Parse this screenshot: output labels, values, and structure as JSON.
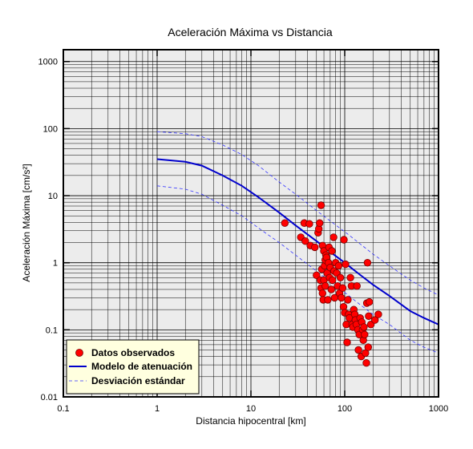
{
  "chart_data": {
    "type": "scatter",
    "title": "Aceleración Máxima vs Distancia",
    "xlabel": "Distancia hipocentral [km]",
    "ylabel": "Aceleración Máxima [cm/s²]",
    "xscale": "log",
    "yscale": "log",
    "xlim": [
      0.1,
      1000
    ],
    "ylim": [
      0.01,
      1500
    ],
    "x_ticks": [
      0.1,
      1,
      10,
      100,
      1000
    ],
    "x_tick_labels": [
      "0.1",
      "1",
      "10",
      "100",
      "1000"
    ],
    "y_ticks": [
      0.01,
      0.1,
      1,
      10,
      100,
      1000
    ],
    "y_tick_labels": [
      "0.01",
      "0.1",
      "1",
      "10",
      "100",
      "1000"
    ],
    "grid": true,
    "legend_position": "bottom-left",
    "legend": [
      {
        "label": "Datos observados",
        "marker": "circle",
        "color": "#ff0000"
      },
      {
        "label": "Modelo de atenuación",
        "line": "solid",
        "color": "#0000cc"
      },
      {
        "label": "Desviación estándar",
        "line": "dashed",
        "color": "#3333ff"
      }
    ],
    "series": [
      {
        "name": "Datos observados",
        "kind": "points",
        "color": "#ff0000",
        "points": [
          [
            23,
            3.9
          ],
          [
            34,
            2.4
          ],
          [
            37,
            3.9
          ],
          [
            38,
            2.1
          ],
          [
            42,
            3.8
          ],
          [
            43,
            1.8
          ],
          [
            48,
            1.7
          ],
          [
            50,
            0.65
          ],
          [
            52,
            2.8
          ],
          [
            53,
            3.2
          ],
          [
            54,
            3.9
          ],
          [
            55,
            0.55
          ],
          [
            56,
            7.2
          ],
          [
            56,
            0.42
          ],
          [
            57,
            0.8
          ],
          [
            58,
            1.8
          ],
          [
            58,
            0.35
          ],
          [
            59,
            0.28
          ],
          [
            60,
            1.5
          ],
          [
            60,
            0.55
          ],
          [
            61,
            0.9
          ],
          [
            62,
            1.1
          ],
          [
            62,
            0.45
          ],
          [
            63,
            1.3
          ],
          [
            64,
            1.2
          ],
          [
            65,
            0.7
          ],
          [
            66,
            0.28
          ],
          [
            67,
            1.0
          ],
          [
            68,
            1.7
          ],
          [
            69,
            0.6
          ],
          [
            70,
            0.85
          ],
          [
            72,
            0.4
          ],
          [
            73,
            1.5
          ],
          [
            74,
            0.55
          ],
          [
            76,
            2.4
          ],
          [
            77,
            0.75
          ],
          [
            78,
            0.3
          ],
          [
            80,
            1.0
          ],
          [
            82,
            0.7
          ],
          [
            84,
            0.45
          ],
          [
            86,
            0.9
          ],
          [
            88,
            0.35
          ],
          [
            90,
            0.6
          ],
          [
            92,
            0.3
          ],
          [
            95,
            0.42
          ],
          [
            97,
            0.22
          ],
          [
            98,
            2.2
          ],
          [
            100,
            0.18
          ],
          [
            102,
            0.95
          ],
          [
            104,
            0.12
          ],
          [
            106,
            0.065
          ],
          [
            108,
            0.28
          ],
          [
            110,
            0.17
          ],
          [
            112,
            0.15
          ],
          [
            115,
            0.6
          ],
          [
            118,
            0.45
          ],
          [
            120,
            0.12
          ],
          [
            122,
            0.11
          ],
          [
            125,
            0.2
          ],
          [
            128,
            0.17
          ],
          [
            130,
            0.14
          ],
          [
            133,
            0.12
          ],
          [
            135,
            0.45
          ],
          [
            138,
            0.1
          ],
          [
            140,
            0.05
          ],
          [
            143,
            0.085
          ],
          [
            146,
            0.15
          ],
          [
            150,
            0.04
          ],
          [
            152,
            0.13
          ],
          [
            155,
            0.1
          ],
          [
            158,
            0.07
          ],
          [
            160,
            0.11
          ],
          [
            163,
            0.085
          ],
          [
            166,
            0.045
          ],
          [
            170,
            0.032
          ],
          [
            172,
            0.25
          ],
          [
            175,
            1.0
          ],
          [
            178,
            0.055
          ],
          [
            180,
            0.16
          ],
          [
            183,
            0.26
          ],
          [
            190,
            0.12
          ],
          [
            210,
            0.14
          ],
          [
            228,
            0.17
          ]
        ]
      },
      {
        "name": "Modelo de atenuación",
        "kind": "line",
        "color": "#0000cc",
        "points": [
          [
            1,
            35
          ],
          [
            2,
            32
          ],
          [
            3,
            28
          ],
          [
            5,
            20
          ],
          [
            8,
            14
          ],
          [
            12,
            9.5
          ],
          [
            20,
            5.6
          ],
          [
            30,
            3.6
          ],
          [
            50,
            2.1
          ],
          [
            70,
            1.45
          ],
          [
            100,
            1.0
          ],
          [
            150,
            0.64
          ],
          [
            200,
            0.47
          ],
          [
            300,
            0.32
          ],
          [
            500,
            0.19
          ],
          [
            700,
            0.15
          ],
          [
            1000,
            0.12
          ]
        ]
      },
      {
        "name": "Desviación estándar (superior)",
        "kind": "dashed-line",
        "color": "#3333ff",
        "points": [
          [
            1,
            90
          ],
          [
            2,
            84
          ],
          [
            3,
            76
          ],
          [
            5,
            57
          ],
          [
            8,
            41
          ],
          [
            12,
            28
          ],
          [
            20,
            16
          ],
          [
            30,
            10.5
          ],
          [
            50,
            6
          ],
          [
            70,
            4.2
          ],
          [
            100,
            2.9
          ],
          [
            150,
            1.85
          ],
          [
            200,
            1.35
          ],
          [
            300,
            0.9
          ],
          [
            500,
            0.55
          ],
          [
            700,
            0.42
          ],
          [
            1000,
            0.33
          ]
        ]
      },
      {
        "name": "Desviación estándar (inferior)",
        "kind": "dashed-line",
        "color": "#3333ff",
        "points": [
          [
            1,
            14
          ],
          [
            2,
            12.5
          ],
          [
            3,
            10.5
          ],
          [
            5,
            7.2
          ],
          [
            8,
            5
          ],
          [
            12,
            3.3
          ],
          [
            20,
            2.0
          ],
          [
            30,
            1.3
          ],
          [
            50,
            0.75
          ],
          [
            70,
            0.52
          ],
          [
            100,
            0.36
          ],
          [
            150,
            0.23
          ],
          [
            200,
            0.17
          ],
          [
            300,
            0.12
          ],
          [
            500,
            0.07
          ],
          [
            700,
            0.055
          ],
          [
            1000,
            0.045
          ]
        ]
      }
    ]
  }
}
